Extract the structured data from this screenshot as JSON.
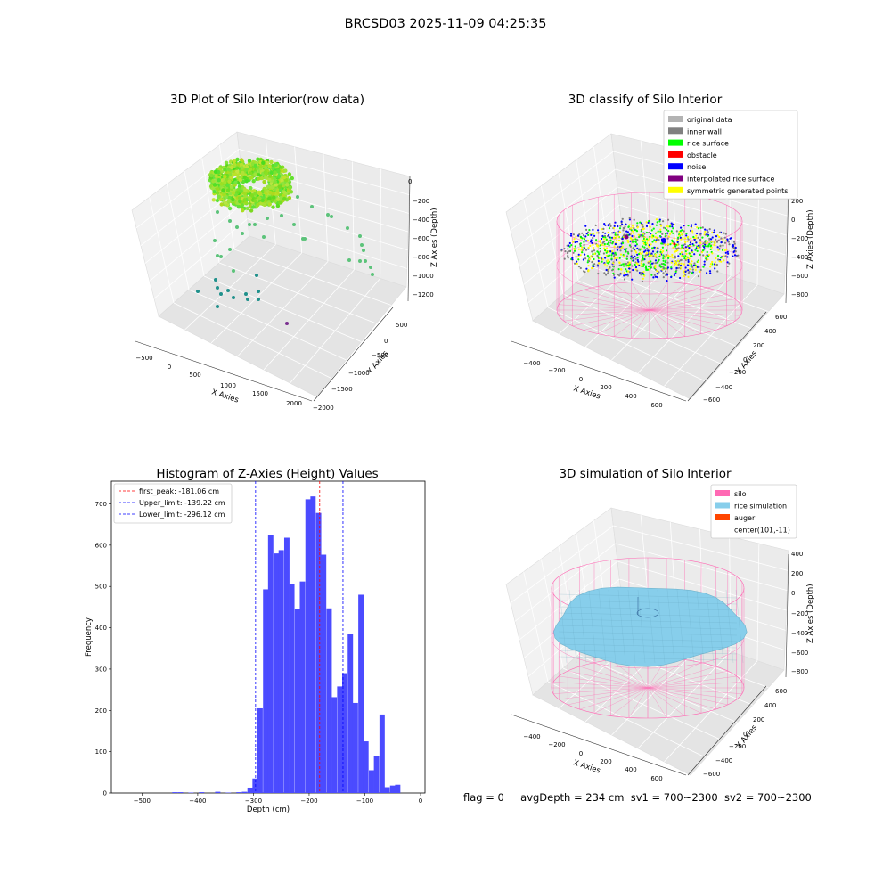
{
  "figure": {
    "title": "BRCSD03 2025-11-09 04:25:35"
  },
  "footer": {
    "flag": "flag = 0",
    "avg_depth": "avgDepth = 234 cm",
    "sv1": "sv1 = 700~2300",
    "sv2": "sv2 = 700~2300"
  },
  "colors": {
    "histogram_bar": "#4b4bff",
    "first_peak_line": "#ff0000",
    "limit_lines": "#0000ff",
    "silo_wire": "#ff69b4",
    "rice_sim": "#87ceeb",
    "auger": "#ff4500",
    "original_data": "#b3b3b3",
    "inner_wall": "#808080",
    "rice_surface": "#00ff00",
    "obstacle": "#ff0000",
    "noise": "#0000ff",
    "interpolated": "#800080",
    "symmetric": "#ffff00"
  },
  "chart_data": [
    {
      "type": "scatter",
      "panel": "3d",
      "title": "3D Plot of Silo Interior(row data)",
      "xlabel": "X Axies",
      "ylabel": "Y Axies",
      "zlabel": "Z Axies (Depth)",
      "xticks": [
        "−500",
        "0",
        "500",
        "1000",
        "1500",
        "2000"
      ],
      "yticks": [
        "500",
        "0",
        "−500",
        "−1000",
        "−1500",
        "−2000"
      ],
      "zticks": [
        "0",
        "−200",
        "−400",
        "−600",
        "−800",
        "−1000",
        "−1200"
      ],
      "grid": true
    },
    {
      "type": "scatter",
      "panel": "3d",
      "title": "3D classify of Silo Interior",
      "xlabel": "X Axies",
      "ylabel": "Y Axies",
      "zlabel": "Z Axies (Depth)",
      "xticks": [
        "−400",
        "−200",
        "0",
        "200",
        "400",
        "600"
      ],
      "yticks": [
        "600",
        "400",
        "200",
        "0",
        "−200",
        "−400",
        "−600"
      ],
      "zticks": [
        "200",
        "0",
        "−200",
        "−400",
        "−600",
        "−800"
      ],
      "legend_position": "top-right",
      "legend": [
        {
          "label": "original data",
          "color": "#b3b3b3"
        },
        {
          "label": "inner wall",
          "color": "#808080"
        },
        {
          "label": "rice surface",
          "color": "#00ff00"
        },
        {
          "label": "obstacle",
          "color": "#ff0000"
        },
        {
          "label": "noise",
          "color": "#0000ff"
        },
        {
          "label": "interpolated rice surface",
          "color": "#800080"
        },
        {
          "label": "symmetric generated points",
          "color": "#ffff00"
        }
      ],
      "grid": true
    },
    {
      "type": "bar",
      "panel": "histogram",
      "title": "Histogram of Z-Axies (Height) Values",
      "xlabel": "Depth (cm)",
      "ylabel": "Frequency",
      "xlim": [
        -555,
        8
      ],
      "ylim": [
        0,
        755
      ],
      "xticks": [
        -500,
        -400,
        -300,
        -200,
        -100,
        0
      ],
      "yticks": [
        0,
        100,
        200,
        300,
        400,
        500,
        600,
        700
      ],
      "bin_width": 9.5,
      "bins": [
        {
          "x": -441,
          "value": 2
        },
        {
          "x": -431,
          "value": 2
        },
        {
          "x": -412,
          "value": 1
        },
        {
          "x": -393,
          "value": 2
        },
        {
          "x": -364,
          "value": 3
        },
        {
          "x": -345,
          "value": 1
        },
        {
          "x": -326,
          "value": 2
        },
        {
          "x": -316,
          "value": 3
        },
        {
          "x": -306,
          "value": 13
        },
        {
          "x": -297,
          "value": 35
        },
        {
          "x": -288,
          "value": 205
        },
        {
          "x": -278,
          "value": 493
        },
        {
          "x": -269,
          "value": 625
        },
        {
          "x": -259,
          "value": 580
        },
        {
          "x": -250,
          "value": 588
        },
        {
          "x": -240,
          "value": 618
        },
        {
          "x": -231,
          "value": 505
        },
        {
          "x": -221,
          "value": 445
        },
        {
          "x": -212,
          "value": 512
        },
        {
          "x": -202,
          "value": 711
        },
        {
          "x": -193,
          "value": 718
        },
        {
          "x": -183,
          "value": 678
        },
        {
          "x": -174,
          "value": 577
        },
        {
          "x": -164,
          "value": 447
        },
        {
          "x": -155,
          "value": 232
        },
        {
          "x": -145,
          "value": 258
        },
        {
          "x": -136,
          "value": 290
        },
        {
          "x": -126,
          "value": 384
        },
        {
          "x": -117,
          "value": 218
        },
        {
          "x": -107,
          "value": 480
        },
        {
          "x": -98,
          "value": 125
        },
        {
          "x": -88,
          "value": 55
        },
        {
          "x": -79,
          "value": 90
        },
        {
          "x": -69,
          "value": 190
        },
        {
          "x": -60,
          "value": 14
        },
        {
          "x": -50,
          "value": 18
        },
        {
          "x": -41,
          "value": 20
        }
      ],
      "lines": [
        {
          "label": "first_peak: -181.06 cm",
          "x": -181.06,
          "color": "#ff0000"
        },
        {
          "label": "Upper_limit: -139.22 cm",
          "x": -139.22,
          "color": "#0000ff"
        },
        {
          "label": "Lower_limit: -296.12 cm",
          "x": -296.12,
          "color": "#0000ff"
        }
      ],
      "legend_position": "top-left"
    },
    {
      "type": "surface",
      "panel": "3d",
      "title": "3D simulation of Silo Interior",
      "xlabel": "X Axies",
      "ylabel": "Y Axies",
      "zlabel": "Z Axies (Depth)",
      "xticks": [
        "−400",
        "−200",
        "0",
        "200",
        "400",
        "600"
      ],
      "yticks": [
        "600",
        "400",
        "200",
        "0",
        "−200",
        "−400",
        "−600"
      ],
      "zticks": [
        "400",
        "200",
        "0",
        "−200",
        "−400",
        "−600",
        "−800"
      ],
      "legend_position": "top-right",
      "legend": [
        {
          "label": "silo",
          "color": "#ff69b4"
        },
        {
          "label": "rice simulation",
          "color": "#87ceeb"
        },
        {
          "label": "auger",
          "color": "#ff4500"
        },
        {
          "label": "center(101,-11)",
          "color": ""
        }
      ],
      "grid": true
    }
  ]
}
